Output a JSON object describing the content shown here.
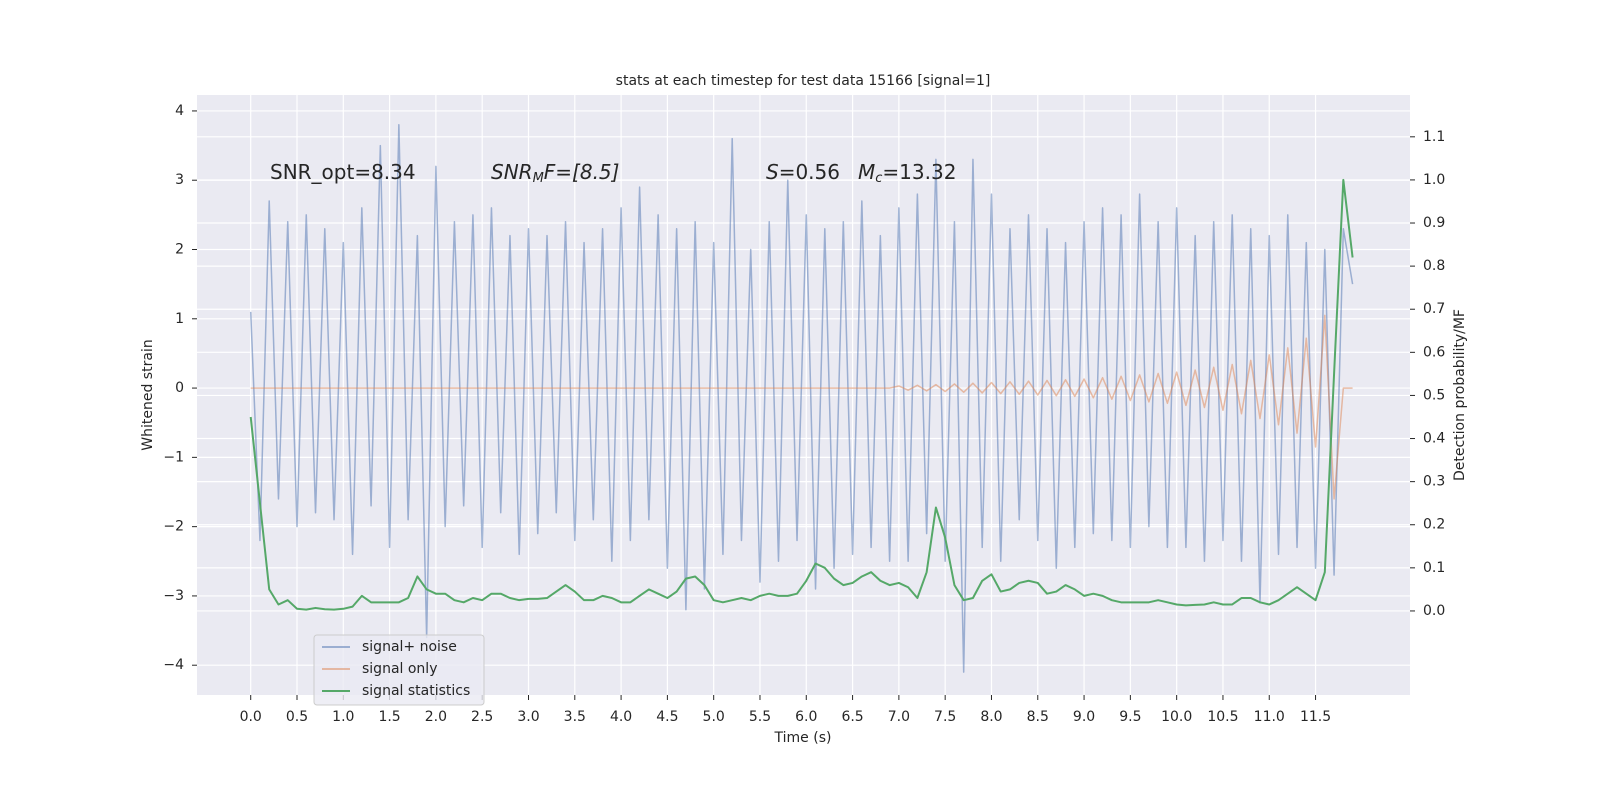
{
  "chart_data": {
    "type": "line",
    "title": "stats at each timestep for test data 15166 [signal=1]",
    "xlabel": "Time (s)",
    "ylabel": "Whitened strain",
    "y2label": "Detection probability/MF",
    "annotations": [
      {
        "parts": [
          "SNR_opt=8.34"
        ]
      },
      {
        "parts": [
          "SNR",
          "M",
          "F=[8.5]"
        ]
      },
      {
        "parts": [
          "S",
          "=0.56"
        ]
      },
      {
        "parts": [
          "M",
          "c",
          "=13.32"
        ]
      }
    ],
    "x": [
      0.0,
      0.1,
      0.2,
      0.3,
      0.4,
      0.5,
      0.6,
      0.7,
      0.8,
      0.9,
      1.0,
      1.1,
      1.2,
      1.3,
      1.4,
      1.5,
      1.6,
      1.7,
      1.8,
      1.9,
      2.0,
      2.1,
      2.2,
      2.3,
      2.4,
      2.5,
      2.6,
      2.7,
      2.8,
      2.9,
      3.0,
      3.1,
      3.2,
      3.3,
      3.4,
      3.5,
      3.6,
      3.7,
      3.8,
      3.9,
      4.0,
      4.1,
      4.2,
      4.3,
      4.4,
      4.5,
      4.6,
      4.7,
      4.8,
      4.9,
      5.0,
      5.1,
      5.2,
      5.3,
      5.4,
      5.5,
      5.6,
      5.7,
      5.8,
      5.9,
      6.0,
      6.1,
      6.2,
      6.3,
      6.4,
      6.5,
      6.6,
      6.7,
      6.8,
      6.9,
      7.0,
      7.1,
      7.2,
      7.3,
      7.4,
      7.5,
      7.6,
      7.7,
      7.8,
      7.9,
      8.0,
      8.1,
      8.2,
      8.3,
      8.4,
      8.5,
      8.6,
      8.7,
      8.8,
      8.9,
      9.0,
      9.1,
      9.2,
      9.3,
      9.4,
      9.5,
      9.6,
      9.7,
      9.8,
      9.9,
      10.0,
      10.1,
      10.2,
      10.3,
      10.4,
      10.5,
      10.6,
      10.7,
      10.8,
      10.9,
      11.0,
      11.1,
      11.2,
      11.3,
      11.4,
      11.5,
      11.6,
      11.7,
      11.8,
      11.9
    ],
    "series": [
      {
        "name": "signal+ noise",
        "color": "#4c72b0",
        "opacity": 0.5,
        "axis": "y",
        "values": [
          1.1,
          -2.2,
          2.7,
          -1.6,
          2.4,
          -2.0,
          2.5,
          -1.8,
          2.3,
          -1.9,
          2.1,
          -2.4,
          2.6,
          -1.7,
          3.5,
          -2.3,
          3.8,
          -1.9,
          2.2,
          -3.6,
          3.2,
          -2.0,
          2.4,
          -1.7,
          2.5,
          -2.3,
          2.6,
          -1.8,
          2.2,
          -2.4,
          2.3,
          -2.1,
          2.2,
          -1.8,
          2.4,
          -2.2,
          2.1,
          -1.9,
          2.3,
          -2.5,
          2.6,
          -2.2,
          2.9,
          -1.9,
          2.5,
          -2.6,
          2.3,
          -3.2,
          2.4,
          -2.9,
          2.1,
          -2.4,
          3.6,
          -2.2,
          2.0,
          -2.8,
          2.4,
          -2.5,
          3.0,
          -2.2,
          2.5,
          -2.9,
          2.3,
          -2.6,
          2.4,
          -2.4,
          2.7,
          -2.3,
          2.2,
          -2.5,
          2.6,
          -2.5,
          2.8,
          -2.1,
          3.3,
          -2.5,
          2.4,
          -4.1,
          3.3,
          -2.3,
          2.8,
          -2.5,
          2.3,
          -1.9,
          2.5,
          -2.2,
          2.3,
          -2.6,
          2.1,
          -2.3,
          2.4,
          -2.1,
          2.6,
          -2.2,
          2.5,
          -2.3,
          2.8,
          -2.0,
          2.4,
          -2.3,
          2.6,
          -2.3,
          2.2,
          -2.5,
          2.4,
          -2.2,
          2.5,
          -2.5,
          2.3,
          -3.1,
          2.2,
          -2.4,
          2.5,
          -2.3,
          2.1,
          -2.6,
          2.0,
          -2.7,
          2.3,
          1.5
        ]
      },
      {
        "name": "signal only",
        "color": "#dd8452",
        "opacity": 0.5,
        "axis": "y",
        "values": [
          0,
          0,
          0,
          0,
          0,
          0,
          0,
          0,
          0,
          0,
          0,
          0,
          0,
          0,
          0,
          0,
          0,
          0,
          0,
          0,
          0,
          0,
          0,
          0,
          0,
          0,
          0,
          0,
          0,
          0,
          0,
          0,
          0,
          0,
          0,
          0,
          0,
          0,
          0,
          0,
          0,
          0,
          0,
          0,
          0,
          0,
          0,
          0,
          0,
          0,
          0,
          0,
          0,
          0,
          0,
          0,
          0,
          0,
          0,
          0,
          0,
          0,
          0,
          0,
          0,
          0,
          0,
          0,
          0,
          0,
          0.03,
          -0.03,
          0.04,
          -0.04,
          0.05,
          -0.05,
          0.06,
          -0.06,
          0.07,
          -0.07,
          0.08,
          -0.08,
          0.09,
          -0.09,
          0.1,
          -0.1,
          0.11,
          -0.11,
          0.12,
          -0.12,
          0.13,
          -0.14,
          0.15,
          -0.16,
          0.17,
          -0.18,
          0.19,
          -0.2,
          0.21,
          -0.22,
          0.23,
          -0.25,
          0.26,
          -0.28,
          0.3,
          -0.32,
          0.34,
          -0.37,
          0.4,
          -0.44,
          0.48,
          -0.53,
          0.58,
          -0.65,
          0.72,
          -0.85,
          1.05,
          -1.6,
          0,
          0
        ]
      },
      {
        "name": "signal statistics",
        "color": "#55a868",
        "opacity": 1,
        "axis": "y2",
        "values": [
          0.45,
          0.25,
          0.05,
          0.015,
          0.025,
          0.005,
          0.003,
          0.007,
          0.004,
          0.003,
          0.005,
          0.01,
          0.035,
          0.02,
          0.02,
          0.02,
          0.02,
          0.03,
          0.08,
          0.05,
          0.04,
          0.04,
          0.025,
          0.02,
          0.03,
          0.025,
          0.04,
          0.04,
          0.03,
          0.025,
          0.028,
          0.028,
          0.03,
          0.045,
          0.06,
          0.045,
          0.025,
          0.025,
          0.035,
          0.03,
          0.02,
          0.02,
          0.035,
          0.05,
          0.04,
          0.03,
          0.045,
          0.075,
          0.08,
          0.06,
          0.025,
          0.02,
          0.025,
          0.03,
          0.025,
          0.035,
          0.04,
          0.035,
          0.035,
          0.04,
          0.07,
          0.11,
          0.1,
          0.075,
          0.06,
          0.065,
          0.08,
          0.09,
          0.07,
          0.06,
          0.065,
          0.055,
          0.03,
          0.09,
          0.24,
          0.17,
          0.06,
          0.025,
          0.03,
          0.07,
          0.085,
          0.045,
          0.05,
          0.065,
          0.07,
          0.065,
          0.04,
          0.045,
          0.06,
          0.05,
          0.035,
          0.04,
          0.035,
          0.025,
          0.02,
          0.02,
          0.02,
          0.02,
          0.025,
          0.02,
          0.015,
          0.013,
          0.014,
          0.015,
          0.02,
          0.015,
          0.015,
          0.03,
          0.03,
          0.02,
          0.015,
          0.025,
          0.04,
          0.055,
          0.04,
          0.025,
          0.09,
          0.55,
          1.0,
          0.82
        ]
      }
    ],
    "xlim": [
      -0.58,
      12.52
    ],
    "ylim": [
      -4.43,
      4.23
    ],
    "y2lim": [
      -0.195,
      1.197
    ],
    "xticks": [
      {
        "value": 0,
        "label": "0.0"
      },
      0.5,
      {
        "value": 1,
        "label": "1.0"
      },
      1.5,
      {
        "value": 2,
        "label": "2.0"
      },
      2.5,
      {
        "value": 3,
        "label": "3.0"
      },
      3.5,
      {
        "value": 4,
        "label": "4.0"
      },
      4.5,
      {
        "value": 5,
        "label": "5.0"
      },
      5.5,
      {
        "value": 6,
        "label": "6.0"
      },
      6.5,
      {
        "value": 7,
        "label": "7.0"
      },
      7.5,
      {
        "value": 8,
        "label": "8.0"
      },
      8.5,
      {
        "value": 9,
        "label": "9.0"
      },
      9.5,
      {
        "value": 10,
        "label": "10.0"
      },
      10.5,
      {
        "value": 11,
        "label": "11.0"
      },
      11.5
    ],
    "yticks": [
      {
        "value": -4,
        "label": "−4"
      },
      {
        "value": -3,
        "label": "−3"
      },
      {
        "value": -2,
        "label": "−2"
      },
      {
        "value": -1,
        "label": "−1"
      },
      0,
      1,
      2,
      3,
      4
    ],
    "y2ticks": [
      {
        "value": 0,
        "label": "0.0"
      },
      0.1,
      0.2,
      0.3,
      0.4,
      0.5,
      0.6,
      0.7,
      0.8,
      0.9,
      {
        "value": 1,
        "label": "1.0"
      },
      1.1
    ],
    "grid": true,
    "legend": "lower left"
  }
}
